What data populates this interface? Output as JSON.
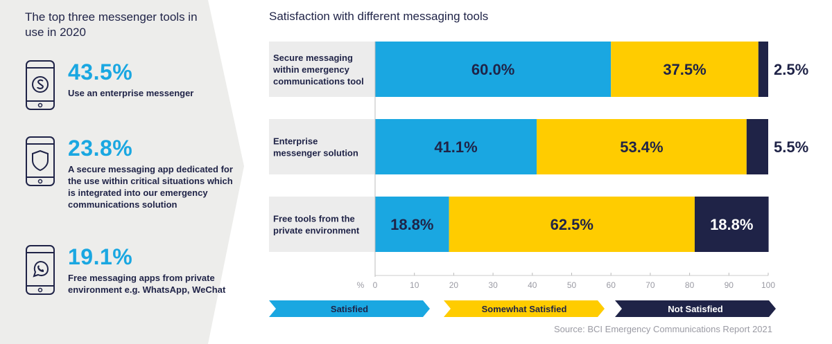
{
  "left_panel": {
    "title": "The top three messenger tools in use in 2020",
    "stats": [
      {
        "icon": "skype-icon",
        "percent": "43.5%",
        "description": "Use an enterprise messenger"
      },
      {
        "icon": "shield-icon",
        "percent": "23.8%",
        "description": "A secure messaging app dedicated for the use within critical situations which is integrated into our emergency communications solution"
      },
      {
        "icon": "whatsapp-icon",
        "percent": "19.1%",
        "description": "Free messaging apps from private environment e.g. WhatsApp, WeChat"
      }
    ]
  },
  "chart_title": "Satisfaction with different messaging tools",
  "source": "Source: BCI Emergency Communications Report 2021",
  "colors": {
    "satisfied": "#1aa7e1",
    "somewhat": "#ffcc00",
    "not": "#1f2347",
    "label_bg": "#ececec",
    "panel": "#ededeb"
  },
  "chart_data": {
    "type": "bar",
    "orientation": "horizontal",
    "stacked": true,
    "categories": [
      [
        "Secure messaging",
        "within emergency",
        "communications tool"
      ],
      [
        "Enterprise",
        "messenger solution"
      ],
      [
        "Free tools from the",
        "private environment"
      ]
    ],
    "series": [
      {
        "name": "Satisfied",
        "values": [
          60.0,
          41.1,
          18.8
        ],
        "labels": [
          "60.0%",
          "41.1%",
          "18.8%"
        ]
      },
      {
        "name": "Somewhat Satisfied",
        "values": [
          37.5,
          53.4,
          62.5
        ],
        "labels": [
          "37.5%",
          "53.4%",
          "62.5%"
        ]
      },
      {
        "name": "Not Satisfied",
        "values": [
          2.5,
          5.5,
          18.8
        ],
        "labels": [
          "2.5%",
          "5.5%",
          "18.8%"
        ]
      }
    ],
    "x_unit": "%",
    "xlim": [
      0,
      100
    ],
    "x_ticks": [
      0,
      10,
      20,
      30,
      40,
      50,
      60,
      70,
      80,
      90,
      100
    ],
    "legend_position": "bottom"
  }
}
